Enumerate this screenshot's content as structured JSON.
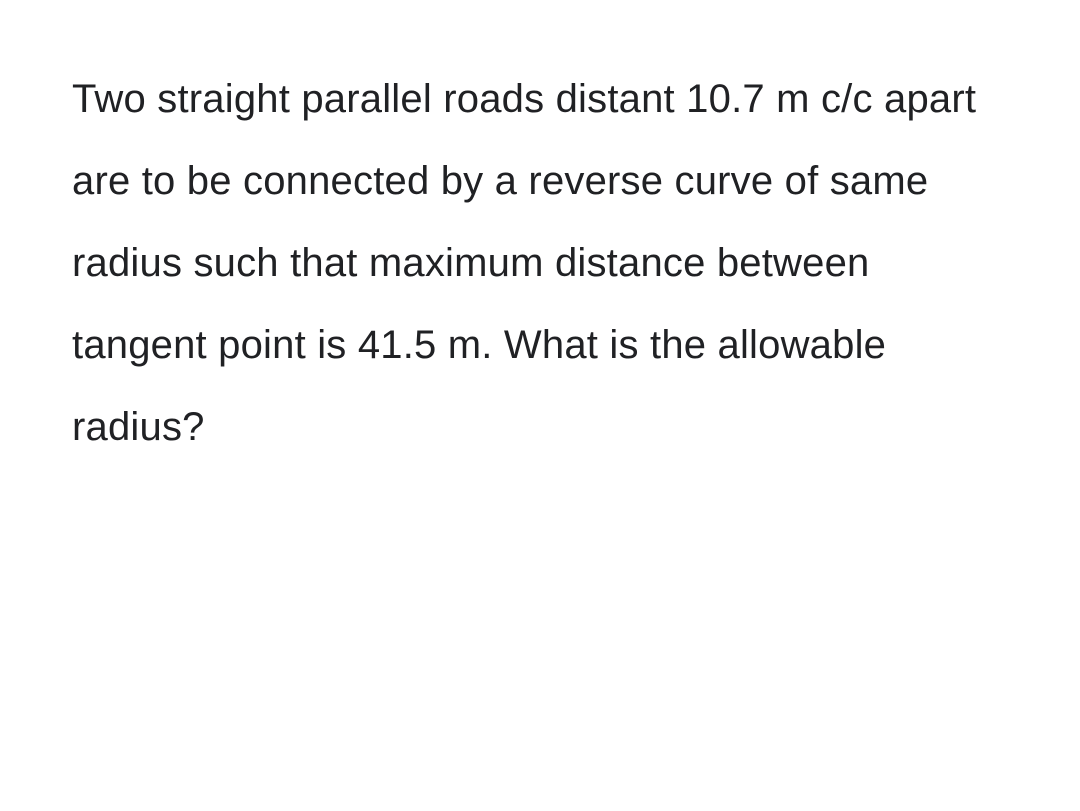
{
  "document": {
    "text": "Two straight parallel roads distant 10.7 m c/c apart are to be connected by a reverse curve of same radius such that maximum distance between tangent point is 41.5 m. What is the allowable radius?",
    "font_size": 40,
    "line_height": 2.05,
    "text_color": "#202124",
    "background_color": "#ffffff",
    "font_family": "Arial"
  }
}
